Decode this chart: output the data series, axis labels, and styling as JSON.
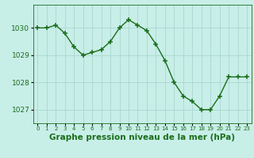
{
  "x": [
    0,
    1,
    2,
    3,
    4,
    5,
    6,
    7,
    8,
    9,
    10,
    11,
    12,
    13,
    14,
    15,
    16,
    17,
    18,
    19,
    20,
    21,
    22,
    23
  ],
  "y": [
    1030.0,
    1030.0,
    1030.1,
    1029.8,
    1029.3,
    1029.0,
    1029.1,
    1029.2,
    1029.5,
    1030.0,
    1030.3,
    1030.1,
    1029.9,
    1029.4,
    1028.8,
    1028.0,
    1027.5,
    1027.3,
    1027.0,
    1027.0,
    1027.5,
    1028.2,
    1028.2,
    1028.2
  ],
  "line_color": "#1a6e1a",
  "marker_color": "#1a6e1a",
  "bg_color": "#c8eee8",
  "grid_color": "#a8d8d0",
  "axis_label_color": "#1a6e1a",
  "tick_label_color": "#1a6e1a",
  "xlabel": "Graphe pression niveau de la mer (hPa)",
  "ylim_min": 1026.5,
  "ylim_max": 1030.85,
  "yticks": [
    1027,
    1028,
    1029,
    1030
  ],
  "xticks": [
    0,
    1,
    2,
    3,
    4,
    5,
    6,
    7,
    8,
    9,
    10,
    11,
    12,
    13,
    14,
    15,
    16,
    17,
    18,
    19,
    20,
    21,
    22,
    23
  ],
  "marker_size": 4,
  "line_width": 1.0,
  "xlabel_fontsize": 7.5,
  "tick_fontsize": 6.5
}
